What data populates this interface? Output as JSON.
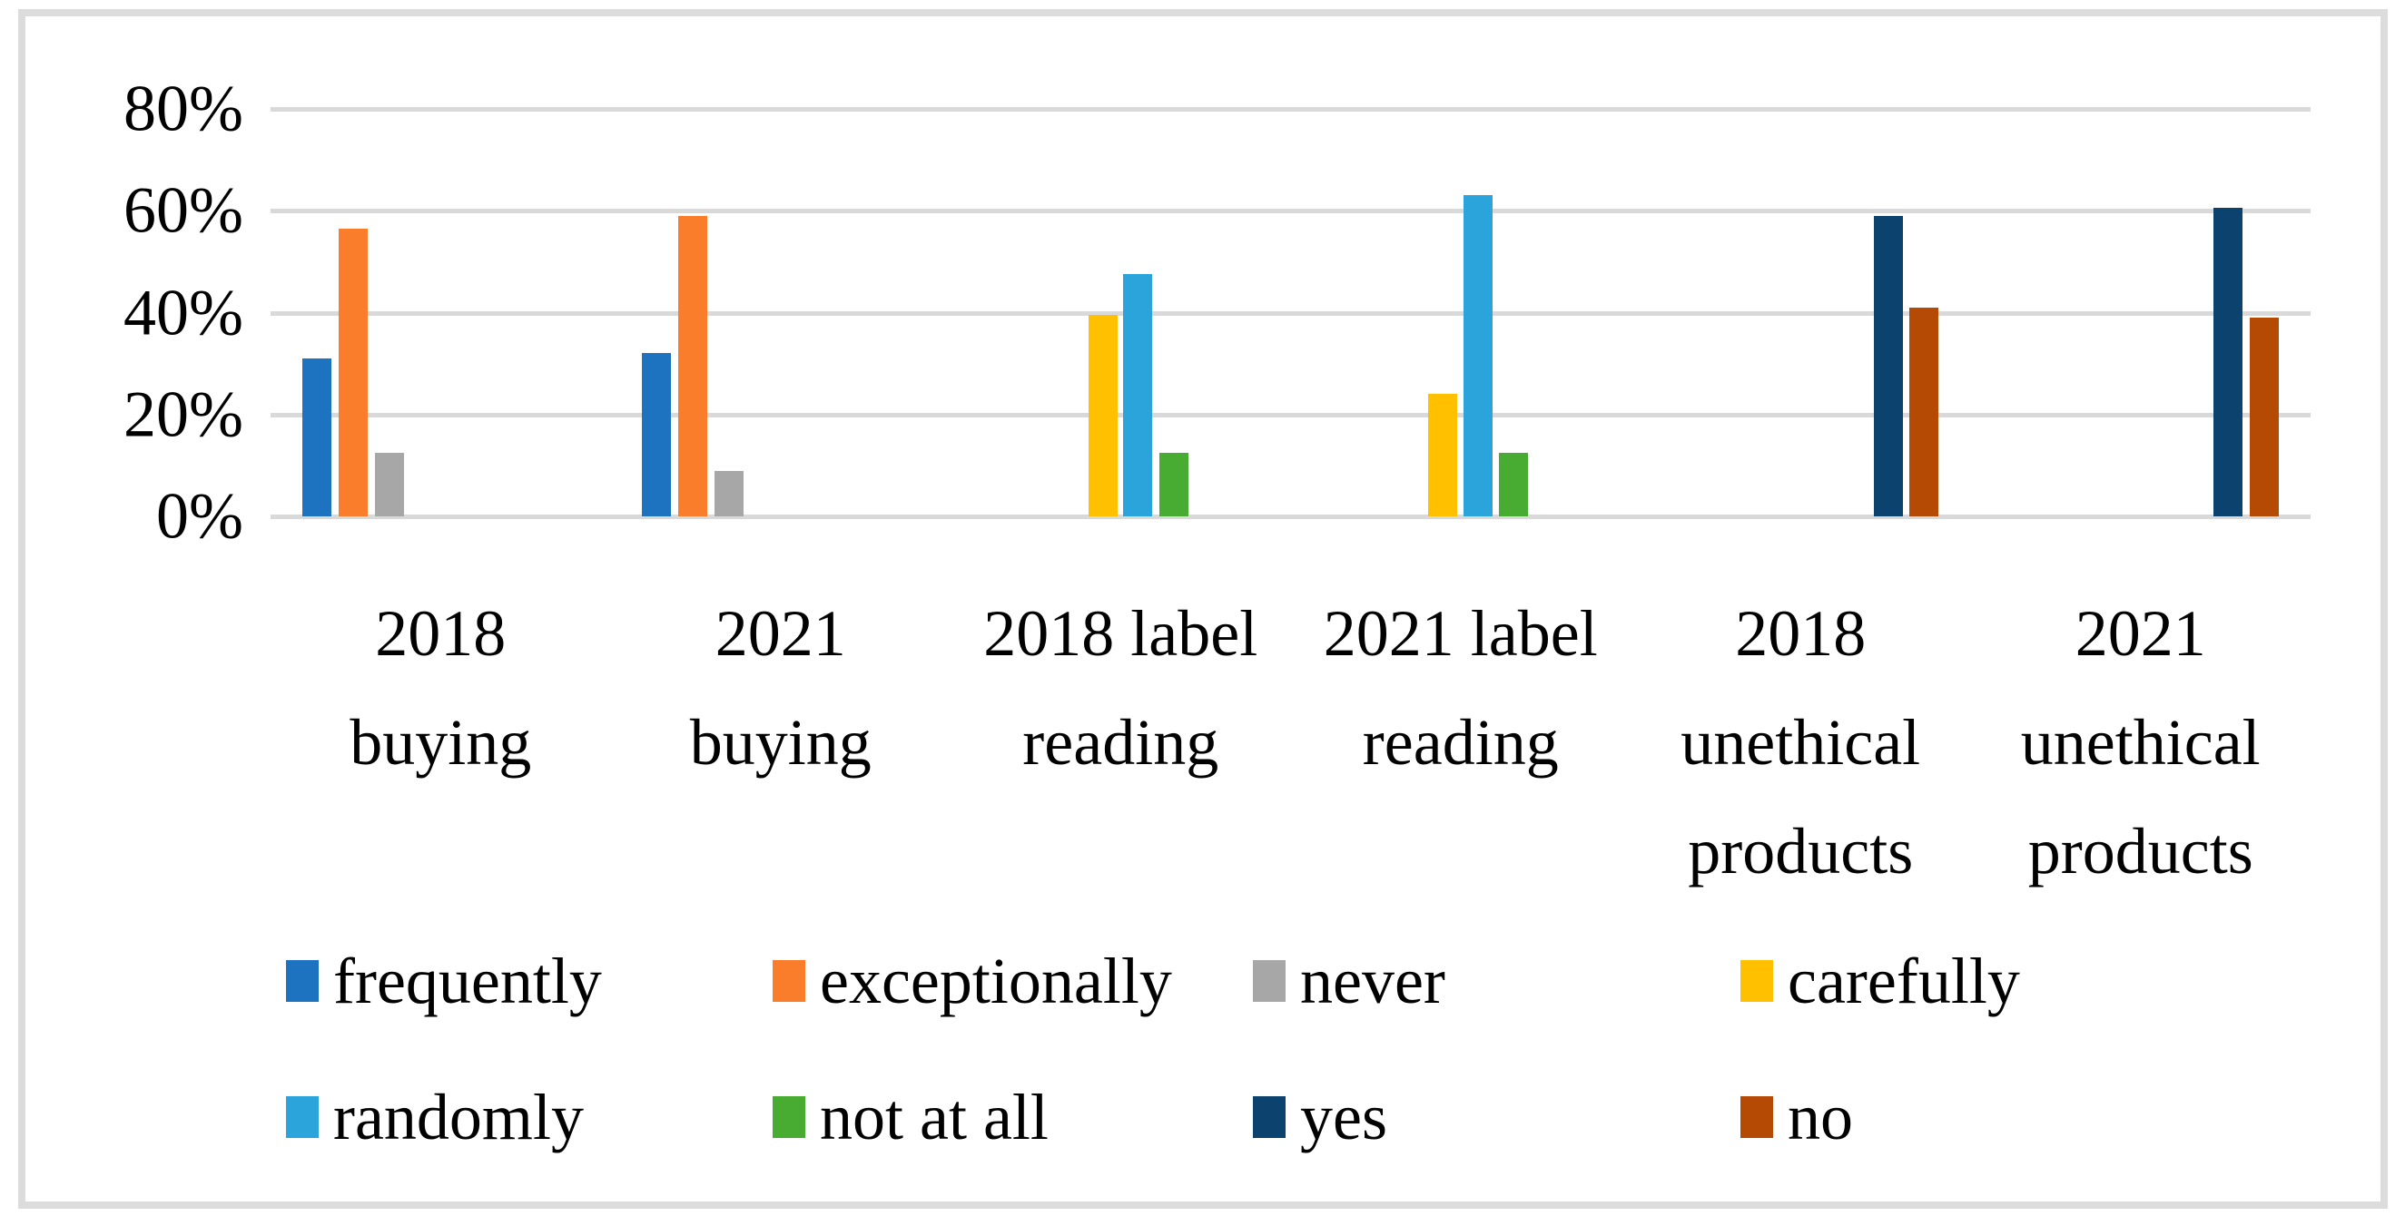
{
  "figure": {
    "background_color": "#ffffff",
    "frame_border_color": "#dcdcdc"
  },
  "chart_data": {
    "type": "bar",
    "title": "",
    "xlabel": "",
    "ylabel": "",
    "categories": [
      "2018 buying",
      "2021 buying",
      "2018 label reading",
      "2021 label reading",
      "2018 unethical products",
      "2021 unethical products"
    ],
    "category_label_lines": [
      [
        "2018",
        "buying"
      ],
      [
        "2021",
        "buying"
      ],
      [
        "2018 label",
        "reading"
      ],
      [
        "2021 label",
        "reading"
      ],
      [
        "2018",
        "unethical",
        "products"
      ],
      [
        "2021",
        "unethical",
        "products"
      ]
    ],
    "series": [
      {
        "name": "frequently",
        "color": "#1e73c0",
        "values": [
          31,
          32,
          null,
          null,
          null,
          null
        ]
      },
      {
        "name": "exceptionally",
        "color": "#f97d2b",
        "values": [
          56.5,
          59,
          null,
          null,
          null,
          null
        ]
      },
      {
        "name": "never",
        "color": "#a7a7a7",
        "values": [
          12.5,
          9,
          null,
          null,
          null,
          null
        ]
      },
      {
        "name": "carefully",
        "color": "#ffc000",
        "values": [
          null,
          null,
          39.5,
          24,
          null,
          null
        ]
      },
      {
        "name": "randomly",
        "color": "#2ba4dc",
        "values": [
          null,
          null,
          47.5,
          63,
          null,
          null
        ]
      },
      {
        "name": "not at all",
        "color": "#48ac33",
        "values": [
          null,
          null,
          12.5,
          12.5,
          null,
          null
        ]
      },
      {
        "name": "yes",
        "color": "#0b436e",
        "values": [
          null,
          null,
          null,
          null,
          59,
          60.5
        ]
      },
      {
        "name": "no",
        "color": "#b44a04",
        "values": [
          null,
          null,
          null,
          null,
          41,
          39
        ]
      }
    ],
    "y_axis": {
      "unit": "%",
      "min": 0,
      "max": 80,
      "tick_values": [
        80,
        60,
        40,
        20,
        0
      ],
      "tick_labels": [
        "80%",
        "60%",
        "40%",
        "20%",
        "0%"
      ],
      "gridlines": true,
      "gridline_color": "#d9d9d9"
    },
    "legend": {
      "position": "bottom",
      "rows": [
        [
          "frequently",
          "exceptionally",
          "never",
          "carefully"
        ],
        [
          "randomly",
          "not at all",
          "yes",
          "no"
        ]
      ]
    }
  }
}
